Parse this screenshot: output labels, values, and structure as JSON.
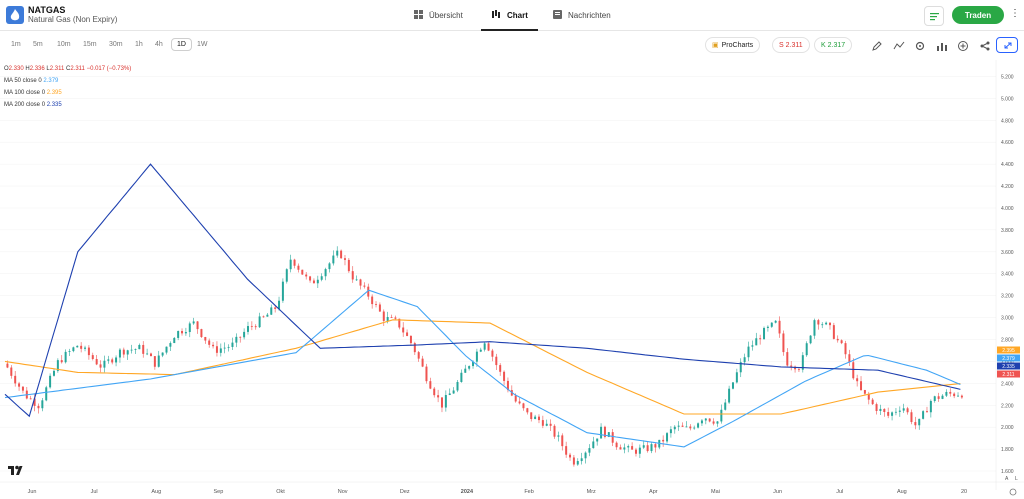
{
  "header": {
    "symbol": "NATGAS",
    "subtitle": "Natural Gas (Non Expiry)",
    "tabs": [
      {
        "label": "Übersicht",
        "icon": "grid-icon"
      },
      {
        "label": "Chart",
        "icon": "candles-icon"
      },
      {
        "label": "Nachrichten",
        "icon": "news-icon"
      }
    ],
    "trade_label": "Traden"
  },
  "toolbar": {
    "timeframes": [
      "1m",
      "5m",
      "10m",
      "15m",
      "30m",
      "1h",
      "4h",
      "1D",
      "1W"
    ],
    "selected_timeframe": "1D",
    "procharts_label": "ProCharts",
    "sell_label": "S 2.311",
    "buy_label": "K 2.317",
    "tools": [
      "pencil-icon",
      "indicators-icon",
      "settings-icon",
      "bar-chart-icon",
      "plus-circle-icon",
      "share-icon",
      "expand-icon"
    ]
  },
  "legend": {
    "ohlc": {
      "o_label": "O",
      "o": "2.330",
      "h_label": "H",
      "h": "2.336",
      "l_label": "L",
      "l": "2.311",
      "c_label": "C",
      "c": "2.311",
      "chg": "−0.017 (−0.73%)"
    },
    "ma50": {
      "label": "MA 50 close 0",
      "value": "2.379",
      "color": "#42a5f5"
    },
    "ma100": {
      "label": "MA 100 close 0",
      "value": "2.395",
      "color": "#ffa726"
    },
    "ma200": {
      "label": "MA 200 close 0",
      "value": "2.335",
      "color": "#1e40af"
    }
  },
  "colors": {
    "up": "#26a69a",
    "down": "#ef5350",
    "grid": "#f2f2f2"
  },
  "chart_data": {
    "type": "candlestick",
    "y_ticks": [
      "5.200",
      "5.000",
      "4.800",
      "4.600",
      "4.400",
      "4.200",
      "4.000",
      "3.800",
      "3.600",
      "3.400",
      "3.200",
      "3.000",
      "2.800",
      "2.600",
      "2.400",
      "2.200",
      "2.000",
      "1.800",
      "1.600"
    ],
    "ylim": [
      1.5,
      5.35
    ],
    "x_labels": [
      "Jun",
      "Jul",
      "Aug",
      "Sep",
      "Okt",
      "Nov",
      "Dez",
      "2024",
      "Feb",
      "Mrz",
      "Apr",
      "Mai",
      "Jun",
      "Jul",
      "Aug",
      "20"
    ],
    "price_tags": [
      {
        "value": 2.395,
        "label": "2.395",
        "color": "#ffa726"
      },
      {
        "value": 2.379,
        "label": "2.379",
        "color": "#42a5f5"
      },
      {
        "value": 2.335,
        "label": "2.335",
        "color": "#1e40af"
      },
      {
        "value": 2.311,
        "label": "2.311",
        "color": "#ef5350"
      }
    ],
    "close_path": [
      [
        0,
        2.58
      ],
      [
        8,
        2.3
      ],
      [
        14,
        2.2
      ],
      [
        22,
        2.6
      ],
      [
        30,
        2.75
      ],
      [
        40,
        2.55
      ],
      [
        48,
        2.7
      ],
      [
        56,
        2.72
      ],
      [
        62,
        2.58
      ],
      [
        70,
        2.85
      ],
      [
        78,
        2.95
      ],
      [
        86,
        2.7
      ],
      [
        94,
        2.75
      ],
      [
        100,
        2.9
      ],
      [
        107,
        3.0
      ],
      [
        112,
        3.1
      ],
      [
        118,
        3.55
      ],
      [
        126,
        3.3
      ],
      [
        132,
        3.45
      ],
      [
        138,
        3.6
      ],
      [
        144,
        3.35
      ],
      [
        150,
        3.2
      ],
      [
        156,
        3.0
      ],
      [
        162,
        2.95
      ],
      [
        168,
        2.75
      ],
      [
        174,
        2.45
      ],
      [
        180,
        2.2
      ],
      [
        186,
        2.38
      ],
      [
        192,
        2.6
      ],
      [
        198,
        2.8
      ],
      [
        204,
        2.5
      ],
      [
        210,
        2.25
      ],
      [
        216,
        2.1
      ],
      [
        222,
        2.05
      ],
      [
        228,
        1.9
      ],
      [
        234,
        1.68
      ],
      [
        240,
        1.8
      ],
      [
        246,
        1.98
      ],
      [
        252,
        1.85
      ],
      [
        258,
        1.78
      ],
      [
        264,
        1.8
      ],
      [
        270,
        1.85
      ],
      [
        276,
        2.0
      ],
      [
        282,
        1.98
      ],
      [
        288,
        2.1
      ],
      [
        294,
        2.05
      ],
      [
        300,
        2.4
      ],
      [
        306,
        2.7
      ],
      [
        312,
        2.85
      ],
      [
        318,
        2.95
      ],
      [
        322,
        2.6
      ],
      [
        328,
        2.55
      ],
      [
        334,
        3.0
      ],
      [
        340,
        2.9
      ],
      [
        346,
        2.7
      ],
      [
        352,
        2.35
      ],
      [
        358,
        2.2
      ],
      [
        364,
        2.1
      ],
      [
        370,
        2.2
      ],
      [
        376,
        2.0
      ],
      [
        382,
        2.25
      ],
      [
        388,
        2.3
      ],
      [
        395,
        2.31
      ]
    ],
    "ma50": [
      [
        0,
        2.27
      ],
      [
        60,
        2.44
      ],
      [
        120,
        2.68
      ],
      [
        150,
        3.25
      ],
      [
        170,
        3.1
      ],
      [
        190,
        2.65
      ],
      [
        210,
        2.3
      ],
      [
        240,
        1.95
      ],
      [
        280,
        1.82
      ],
      [
        300,
        2.05
      ],
      [
        330,
        2.42
      ],
      [
        355,
        2.66
      ],
      [
        380,
        2.52
      ],
      [
        395,
        2.38
      ]
    ],
    "ma100": [
      [
        0,
        2.6
      ],
      [
        30,
        2.5
      ],
      [
        70,
        2.48
      ],
      [
        120,
        2.72
      ],
      [
        160,
        2.98
      ],
      [
        200,
        2.95
      ],
      [
        240,
        2.5
      ],
      [
        280,
        2.12
      ],
      [
        320,
        2.12
      ],
      [
        360,
        2.32
      ],
      [
        395,
        2.4
      ]
    ],
    "ma200": [
      [
        0,
        2.3
      ],
      [
        10,
        2.1
      ],
      [
        30,
        3.6
      ],
      [
        60,
        4.4
      ],
      [
        100,
        3.35
      ],
      [
        130,
        2.72
      ],
      [
        170,
        2.75
      ],
      [
        200,
        2.78
      ],
      [
        240,
        2.72
      ],
      [
        280,
        2.62
      ],
      [
        320,
        2.55
      ],
      [
        360,
        2.52
      ],
      [
        395,
        2.34
      ]
    ]
  }
}
